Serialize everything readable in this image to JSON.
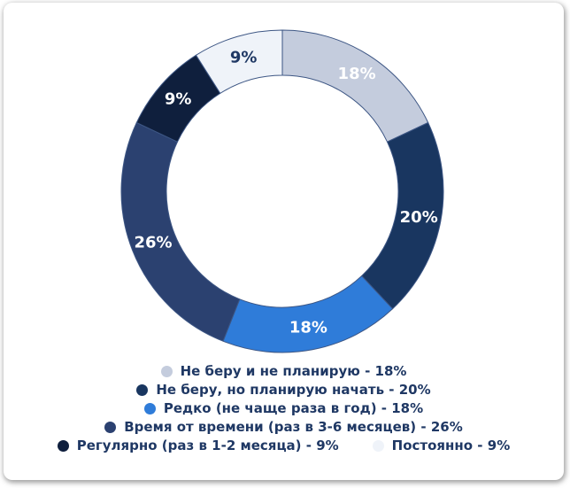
{
  "chart_data": {
    "type": "pie",
    "subtype": "donut",
    "title": "",
    "legend_position": "bottom",
    "start_angle_deg": 0,
    "direction": "clockwise",
    "grid": false,
    "background_color": "#ffffff",
    "stroke_color": "#3d5684",
    "legend_text_color": "#1f3864",
    "segments": [
      {
        "label": "Не беру и не планирую",
        "value": 18,
        "display": "18%",
        "color": "#c4ccdd",
        "label_color": "#ffffff",
        "legend_label": "Не беру и не планирую - 18%"
      },
      {
        "label": "Не беру, но планирую начать",
        "value": 20,
        "display": "20%",
        "color": "#193660",
        "label_color": "#ffffff",
        "legend_label": "Не беру, но планирую начать - 20%"
      },
      {
        "label": "Редко (не чаще раза в год)",
        "value": 18,
        "display": "18%",
        "color": "#2f7cd9",
        "label_color": "#ffffff",
        "legend_label": "Редко (не чаще раза в год) - 18%"
      },
      {
        "label": "Время от времени (раз в 3-6 месяцев)",
        "value": 26,
        "display": "26%",
        "color": "#2b4170",
        "label_color": "#ffffff",
        "legend_label": "Время от времени (раз в 3-6 месяцев) - 26%"
      },
      {
        "label": "Регулярно (раз в 1-2 месяца)",
        "value": 9,
        "display": "9%",
        "color": "#0f1f3d",
        "label_color": "#ffffff",
        "legend_label": "Регулярно (раз в 1-2 месяца) - 9%"
      },
      {
        "label": "Постоянно",
        "value": 9,
        "display": "9%",
        "color": "#eff3f9",
        "label_color": "#1f3864",
        "legend_label": "Постоянно - 9%"
      }
    ]
  }
}
